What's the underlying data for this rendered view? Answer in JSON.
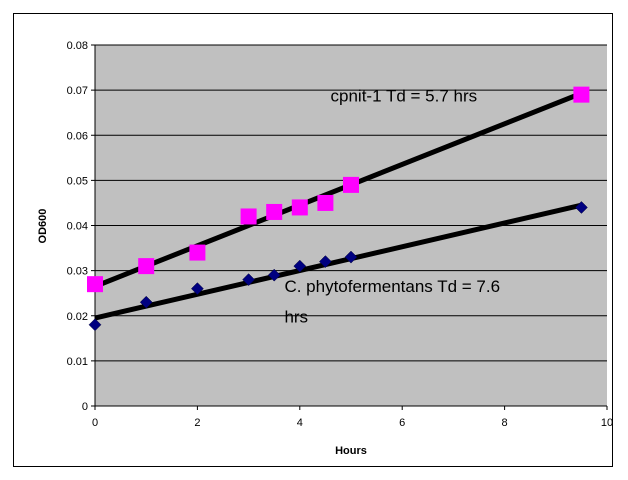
{
  "chart_data": {
    "type": "scatter",
    "xlabel": "Hours",
    "ylabel": "OD600",
    "xlim": [
      0,
      10
    ],
    "ylim": [
      0,
      0.08
    ],
    "x_ticks": [
      0,
      2,
      4,
      6,
      8,
      10
    ],
    "y_ticks": [
      0,
      0.01,
      0.02,
      0.03,
      0.04,
      0.05,
      0.06,
      0.07,
      0.08
    ],
    "x_tick_labels": [
      "0",
      "2",
      "4",
      "6",
      "8",
      "10"
    ],
    "y_tick_labels": [
      "0",
      "0.01",
      "0.02",
      "0.03",
      "0.04",
      "0.05",
      "0.06",
      "0.07",
      "0.08"
    ],
    "grid": "horizontal",
    "plot_background": "#c0c0c0",
    "series": [
      {
        "marker": "square",
        "color": "#ff00ff",
        "points": [
          [
            0,
            0.027
          ],
          [
            1,
            0.031
          ],
          [
            2,
            0.034
          ],
          [
            3,
            0.042
          ],
          [
            3.5,
            0.043
          ],
          [
            4,
            0.044
          ],
          [
            4.5,
            0.045
          ],
          [
            5,
            0.049
          ],
          [
            9.5,
            0.069
          ]
        ],
        "trendline": {
          "x": [
            0,
            9.5
          ],
          "y": [
            0.0265,
            0.0693
          ]
        }
      },
      {
        "marker": "diamond",
        "color": "#000080",
        "points": [
          [
            0,
            0.018
          ],
          [
            1,
            0.023
          ],
          [
            2,
            0.026
          ],
          [
            3,
            0.028
          ],
          [
            3.5,
            0.029
          ],
          [
            4,
            0.031
          ],
          [
            4.5,
            0.032
          ],
          [
            5,
            0.033
          ],
          [
            9.5,
            0.044
          ]
        ],
        "trendline": {
          "x": [
            0,
            9.5
          ],
          "y": [
            0.0195,
            0.0445
          ]
        }
      }
    ],
    "annotations": [
      {
        "text": "cpnit-1  Td = 5.7 hrs",
        "x": 4.6,
        "y": 0.0675
      },
      {
        "text": "C. phytofermentans  Td = 7.6",
        "x": 3.7,
        "y": 0.0253
      },
      {
        "text": "hrs",
        "x": 3.7,
        "y": 0.0185
      }
    ]
  }
}
